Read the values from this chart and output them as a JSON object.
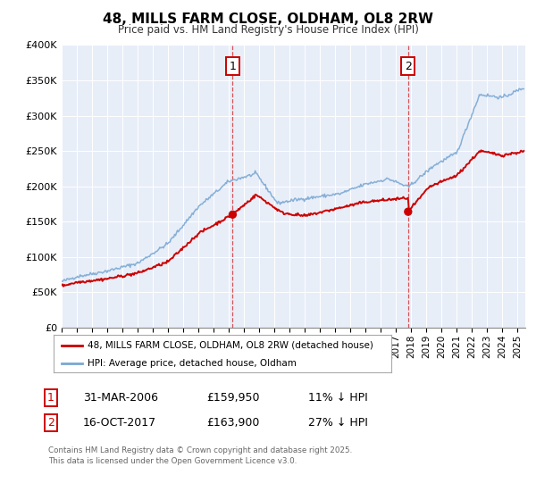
{
  "title": "48, MILLS FARM CLOSE, OLDHAM, OL8 2RW",
  "subtitle": "Price paid vs. HM Land Registry's House Price Index (HPI)",
  "background_color": "#ffffff",
  "plot_bg_color": "#e8eef8",
  "grid_color": "#ffffff",
  "legend_label_red": "48, MILLS FARM CLOSE, OLDHAM, OL8 2RW (detached house)",
  "legend_label_blue": "HPI: Average price, detached house, Oldham",
  "footer": "Contains HM Land Registry data © Crown copyright and database right 2025.\nThis data is licensed under the Open Government Licence v3.0.",
  "sale1_date": "31-MAR-2006",
  "sale1_price": "£159,950",
  "sale1_hpi": "11% ↓ HPI",
  "sale1_year": 2006.25,
  "sale1_value": 159950,
  "sale2_date": "16-OCT-2017",
  "sale2_price": "£163,900",
  "sale2_hpi": "27% ↓ HPI",
  "sale2_year": 2017.79,
  "sale2_value": 163900,
  "red_color": "#cc0000",
  "blue_color": "#7aa8d4",
  "vline_color": "#cc0000",
  "ylim_min": 0,
  "ylim_max": 400000,
  "xlim_min": 1995,
  "xlim_max": 2025.5,
  "ytick_labels": [
    "£0",
    "£50K",
    "£100K",
    "£150K",
    "£200K",
    "£250K",
    "£300K",
    "£350K",
    "£400K"
  ],
  "ytick_values": [
    0,
    50000,
    100000,
    150000,
    200000,
    250000,
    300000,
    350000,
    400000
  ],
  "xtick_values": [
    1995,
    1996,
    1997,
    1998,
    1999,
    2000,
    2001,
    2002,
    2003,
    2004,
    2005,
    2006,
    2007,
    2008,
    2009,
    2010,
    2011,
    2012,
    2013,
    2014,
    2015,
    2016,
    2017,
    2018,
    2019,
    2020,
    2021,
    2022,
    2023,
    2024,
    2025
  ]
}
